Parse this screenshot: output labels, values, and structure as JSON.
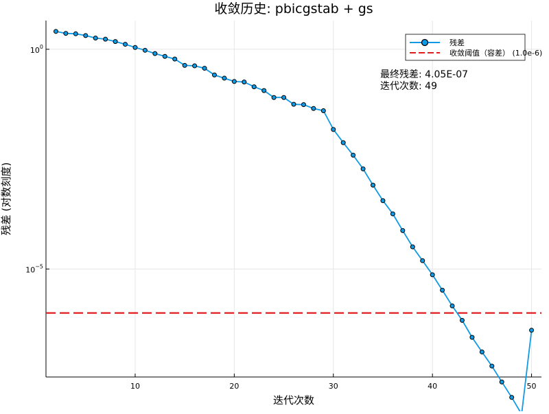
{
  "chart_data": {
    "type": "line",
    "title": "收敛历史: pbicgstab + gs",
    "xlabel": "迭代次数",
    "ylabel": "残差 (对数刻度)",
    "x_scale": "linear",
    "y_scale": "log",
    "xlim": [
      1,
      51
    ],
    "ylim": [
      3.5e-08,
      4.5
    ],
    "grid": true,
    "legend_position": "top-right",
    "x_ticks": [
      10,
      20,
      30,
      40,
      50
    ],
    "x_tick_labels": [
      "10",
      "20",
      "30",
      "40",
      "50"
    ],
    "y_ticks": [
      1,
      1e-05
    ],
    "y_tick_labels": [
      {
        "base": "10",
        "exp": "0"
      },
      {
        "base": "10",
        "exp": "−5"
      }
    ],
    "series": [
      {
        "name": "残差",
        "color": "#0f9ae6",
        "marker": "circle",
        "x": [
          2,
          3,
          4,
          5,
          6,
          7,
          8,
          9,
          10,
          11,
          12,
          13,
          14,
          15,
          16,
          17,
          18,
          19,
          20,
          21,
          22,
          23,
          24,
          25,
          26,
          27,
          28,
          29,
          30,
          31,
          32,
          33,
          34,
          35,
          36,
          37,
          38,
          39,
          40,
          41,
          42,
          43,
          44,
          45,
          46,
          47,
          48,
          49,
          50
        ],
        "y": [
          2.55,
          2.3,
          2.25,
          2.05,
          1.8,
          1.7,
          1.5,
          1.3,
          1.1,
          0.95,
          0.8,
          0.69,
          0.6,
          0.43,
          0.42,
          0.37,
          0.26,
          0.22,
          0.185,
          0.18,
          0.14,
          0.115,
          0.08,
          0.08,
          0.056,
          0.055,
          0.045,
          0.04,
          0.015,
          0.0075,
          0.0039,
          0.0019,
          0.00081,
          0.00036,
          0.00018,
          7.5e-05,
          3.2e-05,
          1.55e-05,
          7.4e-06,
          3.3e-06,
          1.45e-06,
          6.8e-07,
          2.8e-07,
          1.3e-07,
          6.2e-08,
          2.7e-08,
          1.2e-08,
          5e-09,
          4.05e-07
        ]
      },
      {
        "name": "收敛阈值（容差） (1.0e-6)",
        "color": "#e31a1c",
        "style": "dashed",
        "y_const": 1e-06
      }
    ],
    "annotations": [
      "最终残差: 4.05E-07",
      "迭代次数: 49"
    ]
  }
}
